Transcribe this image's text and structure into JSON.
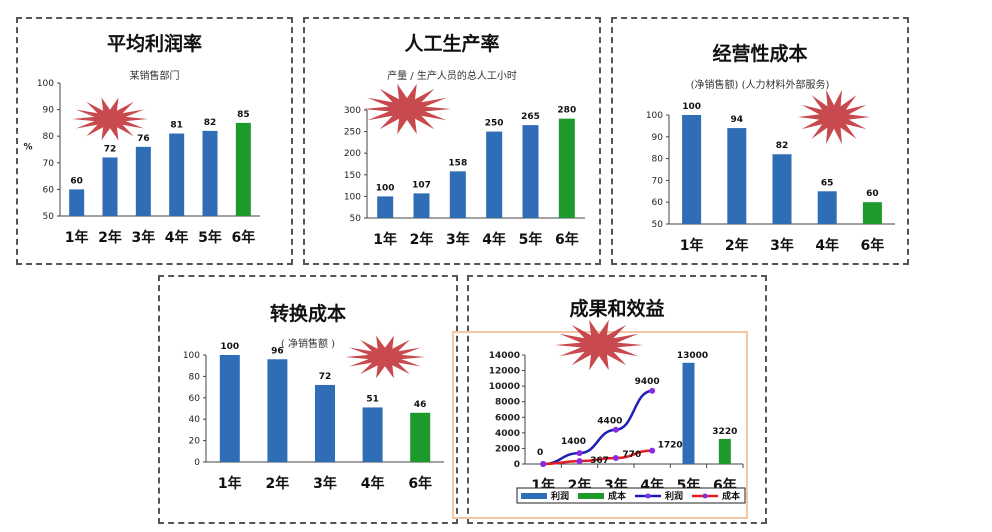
{
  "colors": {
    "blue": "#2f6db6",
    "green": "#1d9a2b",
    "star": "#c84a4e",
    "line_blue": "#1b1fb5",
    "line_red": "#e51c23",
    "marker": "#8a2be2",
    "frame": "#f0c8a8"
  },
  "chart_data": [
    {
      "type": "bar",
      "title": "平均利润率",
      "subtitle": "某销售部门",
      "ylabel": "%",
      "categories": [
        "1年",
        "2年",
        "3年",
        "4年",
        "5年",
        "6年"
      ],
      "values": [
        60,
        72,
        76,
        81,
        82,
        85
      ],
      "ylim": [
        50,
        100
      ],
      "yticks": [
        50,
        60,
        70,
        80,
        90,
        100
      ],
      "highlight_last": true
    },
    {
      "type": "bar",
      "title": "人工生产率",
      "subtitle": "产量 / 生产人员的总人工小时",
      "ylabel": "",
      "categories": [
        "1年",
        "2年",
        "3年",
        "4年",
        "5年",
        "6年"
      ],
      "values": [
        100,
        107,
        158,
        250,
        265,
        280
      ],
      "ylim": [
        50,
        300
      ],
      "yticks": [
        50,
        100,
        150,
        200,
        250,
        300
      ],
      "highlight_last": true
    },
    {
      "type": "bar",
      "title": "经营性成本",
      "subtitle": "(净销售额) (人力材料外部服务)",
      "ylabel": "",
      "categories": [
        "1年",
        "2年",
        "3年",
        "4年",
        "6年"
      ],
      "values": [
        100,
        94,
        82,
        65,
        60
      ],
      "ylim": [
        50,
        100
      ],
      "yticks": [
        50,
        60,
        70,
        80,
        90,
        100
      ],
      "highlight_last": true
    },
    {
      "type": "bar",
      "title": "转换成本",
      "subtitle": "( 净销售额 )",
      "ylabel": "",
      "categories": [
        "1年",
        "2年",
        "3年",
        "4年",
        "6年"
      ],
      "values": [
        100,
        96,
        72,
        51,
        46
      ],
      "ylim": [
        0,
        100
      ],
      "yticks": [
        0,
        20,
        40,
        60,
        80,
        100
      ],
      "highlight_last": true
    },
    {
      "type": "combo",
      "title": "成果和效益",
      "categories": [
        "1年",
        "2年",
        "3年",
        "4年",
        "5年",
        "6年"
      ],
      "ylim": [
        0,
        14000
      ],
      "yticks": [
        0,
        2000,
        4000,
        6000,
        8000,
        10000,
        12000,
        14000
      ],
      "bar_series": [
        {
          "name": "利润",
          "values": [
            null,
            null,
            null,
            null,
            13000,
            null
          ]
        },
        {
          "name": "成本",
          "values": [
            null,
            null,
            null,
            null,
            null,
            3220
          ]
        }
      ],
      "line_series": [
        {
          "name": "利润",
          "values": [
            0,
            1400,
            4400,
            9400
          ]
        },
        {
          "name": "成本",
          "values": [
            0,
            367,
            770,
            1720
          ]
        }
      ],
      "legend": [
        "利润",
        "成本",
        "利润",
        "成本"
      ],
      "data_labels": {
        "profit_bar": "13000",
        "cost_bar": "3220",
        "profit_line": [
          "0",
          "1400",
          "4400",
          "9400"
        ],
        "cost_line": [
          "367",
          "770",
          "1720"
        ]
      }
    }
  ]
}
